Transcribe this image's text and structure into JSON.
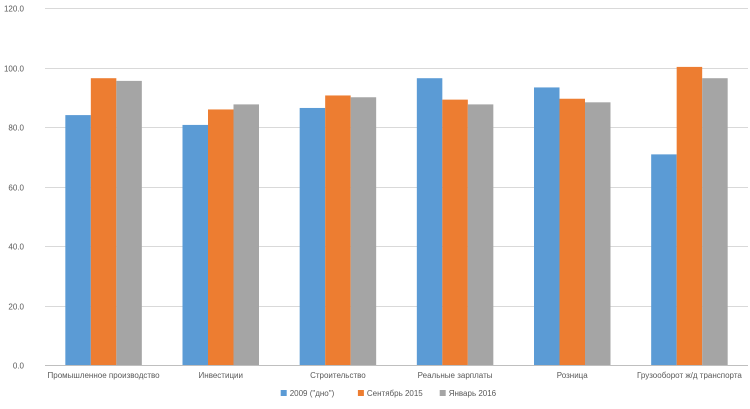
{
  "chart_data": {
    "type": "bar",
    "categories": [
      "Промышленное производство",
      "Инвестиции",
      "Строительство",
      "Реальные зарплаты",
      "Розница",
      "Грузооборот ж/д транспорта"
    ],
    "series": [
      {
        "name": "2009 (\"дно\")",
        "values": [
          84.0,
          80.7,
          86.4,
          96.4,
          93.3,
          70.8
        ],
        "color": "#5b9bd5"
      },
      {
        "name": "Сентябрь 2015",
        "values": [
          96.4,
          85.9,
          90.6,
          89.2,
          89.5,
          100.2
        ],
        "color": "#ed7d31"
      },
      {
        "name": "Январь 2016",
        "values": [
          95.5,
          87.6,
          90.0,
          87.6,
          88.3,
          96.4
        ],
        "color": "#a5a5a5"
      }
    ],
    "yticks": [
      "0.0",
      "20.0",
      "40.0",
      "60.0",
      "80.0",
      "100.0",
      "120.0"
    ],
    "ylim": [
      0,
      120
    ],
    "grid": true,
    "legend_position": "bottom"
  }
}
